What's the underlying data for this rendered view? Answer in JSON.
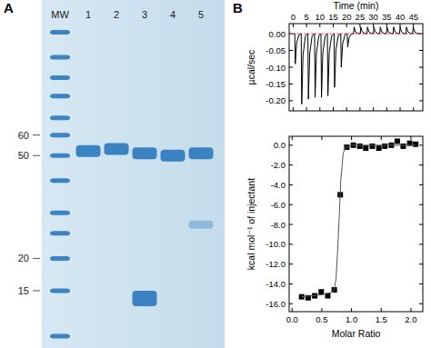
{
  "chart_data": [
    {
      "type": "gel",
      "title": "A",
      "categories": [
        "MW",
        "1",
        "2",
        "3",
        "4",
        "5"
      ],
      "bands": [
        [
          150,
          120,
          100,
          85,
          70,
          60,
          50,
          40,
          30,
          25,
          20,
          15,
          10
        ],
        [
          52
        ],
        [
          53
        ],
        [
          51,
          14
        ],
        [
          50
        ],
        [
          51,
          27
        ]
      ],
      "log": "y",
      "ylim": [
        9,
        200
      ],
      "yticks": [
        15,
        20,
        50,
        60
      ],
      "tick_labels": "y",
      "color": "#2a78bd"
    },
    {
      "type": "line",
      "title": "B",
      "xlabel": "Time (min)",
      "ylabel": "µcal/sec",
      "xlim": [
        -1.5,
        48.5
      ],
      "ylim": [
        -0.23,
        0.03
      ],
      "xticks": [
        0,
        5,
        10,
        15,
        20,
        25,
        30,
        35,
        40,
        45
      ],
      "yticks": [
        {
          "value": 0,
          "label": "0.00"
        },
        {
          "value": -0.05,
          "label": "-0.05"
        },
        {
          "value": -0.1,
          "label": "-0.10"
        },
        {
          "value": -0.15,
          "label": "-0.15"
        },
        {
          "value": -0.2,
          "label": "-0.20"
        }
      ],
      "series": [
        {
          "color": "#000000",
          "x": [
            0,
            0.6,
            0.8,
            1.3,
            2.2,
            3.0,
            3.2,
            3.7,
            4.6,
            5.5,
            5.7,
            6.2,
            7.1,
            8.0,
            8.2,
            8.7,
            9.6,
            10.4,
            10.6,
            11.1,
            12.0,
            12.8,
            13.0,
            13.5,
            14.4,
            15.3,
            15.5,
            16.0,
            16.9,
            17.8,
            18.0,
            18.5,
            19.4,
            20.2,
            20.4,
            20.9,
            21.8,
            22.6,
            22.8,
            23.3,
            24.2,
            25.1,
            25.3,
            25.8,
            26.7,
            27.6,
            27.8,
            28.3,
            29.2,
            30.0,
            30.2,
            30.7,
            31.6,
            32.4,
            32.6,
            33.1,
            34.0,
            34.9,
            35.1,
            35.6,
            36.5,
            37.4,
            37.6,
            38.1,
            39.0,
            39.8,
            40.0,
            40.5,
            41.4,
            42.2,
            42.4,
            42.9,
            43.8,
            44.7,
            44.9,
            45.4,
            46.3,
            47.5
          ],
          "values": [
            0,
            0,
            -0.09,
            -0.027,
            -0.003,
            0,
            -0.21,
            -0.063,
            -0.006,
            0,
            -0.195,
            -0.059,
            -0.006,
            0,
            -0.19,
            -0.057,
            -0.006,
            0,
            -0.19,
            -0.057,
            -0.006,
            0,
            -0.185,
            -0.056,
            -0.006,
            0,
            -0.16,
            -0.048,
            -0.005,
            0,
            -0.1,
            -0.03,
            -0.003,
            0,
            -0.04,
            -0.012,
            -0.001,
            0,
            0.02,
            0.006,
            0.001,
            0,
            0.02,
            0.006,
            0.001,
            0,
            0.02,
            0.006,
            0.001,
            0,
            0.02,
            0.006,
            0.001,
            0,
            0.02,
            0.006,
            0.001,
            0,
            0.02,
            0.006,
            0.001,
            0,
            0.02,
            0.006,
            0.001,
            0,
            0.02,
            0.006,
            0.001,
            0,
            0.02,
            0.006,
            0.001,
            0,
            0.02,
            0.006,
            0.001,
            0
          ]
        },
        {
          "color": "#d62728",
          "line_style": "dotted",
          "x": [
            0,
            47.5
          ],
          "values": [
            0,
            0
          ]
        }
      ]
    },
    {
      "type": "scatter",
      "xlabel": "Molar Ratio",
      "ylabel": "kcal mol⁻¹ of injectant",
      "xlim": [
        -0.05,
        2.2
      ],
      "ylim": [
        -16.8,
        0.9
      ],
      "xticks": [
        {
          "value": 0,
          "label": "0.0"
        },
        0.5,
        {
          "value": 1,
          "label": "1.0"
        },
        1.5,
        {
          "value": 2,
          "label": "2.0"
        }
      ],
      "yticks": [
        {
          "value": 0,
          "label": "0.0"
        },
        {
          "value": -2,
          "label": "-2.0"
        },
        {
          "value": -4,
          "label": "-4.0"
        },
        {
          "value": -6,
          "label": "-6.0"
        },
        {
          "value": -8,
          "label": "-8.0"
        },
        {
          "value": -10,
          "label": "-10.0"
        },
        {
          "value": -12,
          "label": "-12.0"
        },
        {
          "value": -14,
          "label": "-14.0"
        },
        {
          "value": -16,
          "label": "-16.0"
        }
      ],
      "series": [
        {
          "type": "scatter",
          "marker": "square",
          "color": "#000000",
          "x": [
            0.16,
            0.27,
            0.38,
            0.49,
            0.6,
            0.71,
            0.81,
            0.92,
            1.03,
            1.14,
            1.24,
            1.35,
            1.46,
            1.56,
            1.67,
            1.77,
            1.87,
            1.98,
            2.08
          ],
          "values": [
            -15.3,
            -15.4,
            -15.2,
            -14.8,
            -15.2,
            -14.6,
            -5.0,
            -0.2,
            0.0,
            -0.1,
            -0.3,
            -0.1,
            -0.3,
            -0.1,
            0.0,
            0.4,
            -0.1,
            0.2,
            0.1
          ]
        },
        {
          "type": "line",
          "color": "#555555",
          "x": [
            0.16,
            0.5,
            0.7,
            0.74,
            0.78,
            0.82,
            0.86,
            0.9,
            1.0,
            2.08
          ],
          "values": [
            -15.3,
            -15.1,
            -14.8,
            -13.5,
            -9.0,
            -3.5,
            -0.8,
            -0.2,
            0.0,
            0.0
          ]
        }
      ]
    }
  ]
}
